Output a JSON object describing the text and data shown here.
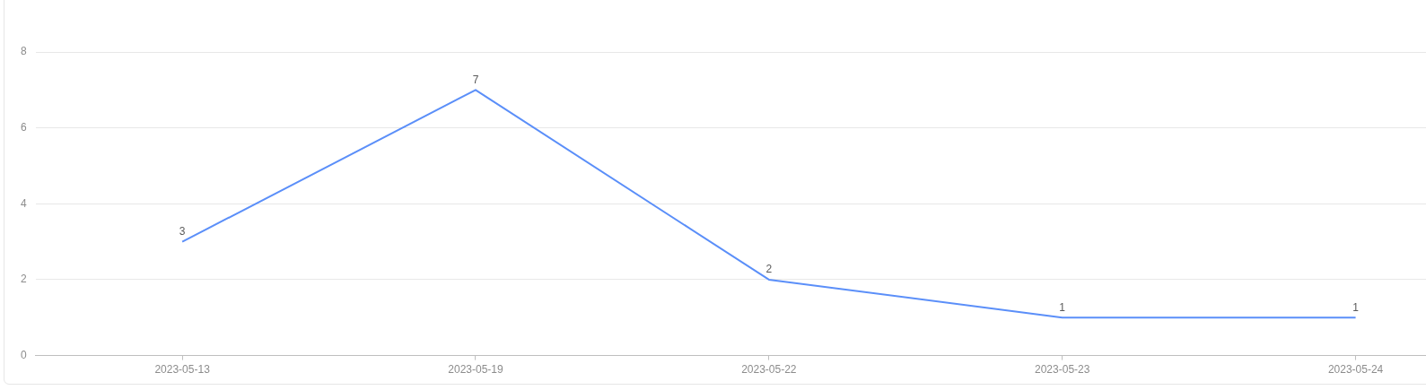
{
  "chart_data": {
    "type": "line",
    "categories": [
      "2023-05-13",
      "2023-05-19",
      "2023-05-22",
      "2023-05-23",
      "2023-05-24"
    ],
    "values": [
      3,
      7,
      2,
      1,
      1
    ],
    "color": "#5b8ff9",
    "ylim": [
      0,
      8
    ],
    "yticks": [
      0,
      2,
      4,
      6,
      8
    ],
    "grid": "y",
    "marker": "none",
    "data_labels": true
  }
}
